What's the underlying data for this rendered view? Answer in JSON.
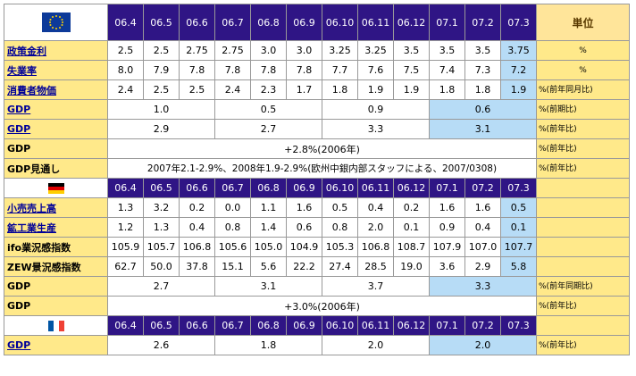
{
  "months": [
    "06.4",
    "06.5",
    "06.6",
    "06.7",
    "06.8",
    "06.9",
    "06.10",
    "06.11",
    "06.12",
    "07.1",
    "07.2",
    "07.3"
  ],
  "unit_header": "単位",
  "colors": {
    "header_bg": "#2f1585",
    "label_bg": "#ffe98a",
    "highlight": "#b7dcf6",
    "negative": "#c0143c"
  },
  "eu": {
    "flag": "eu-flag-icon",
    "rows": [
      {
        "label": "政策金利",
        "values": [
          "2.5",
          "2.5",
          "2.75",
          "2.75",
          "3.0",
          "3.0",
          "3.25",
          "3.25",
          "3.5",
          "3.5",
          "3.5",
          "3.75"
        ],
        "unit": "%"
      },
      {
        "label": "失業率",
        "values": [
          "8.0",
          "7.9",
          "7.8",
          "7.8",
          "7.8",
          "7.8",
          "7.7",
          "7.6",
          "7.5",
          "7.4",
          "7.3",
          "7.2"
        ],
        "unit": "%"
      },
      {
        "label": "消費者物価",
        "values": [
          "2.4",
          "2.5",
          "2.5",
          "2.4",
          "2.3",
          "1.7",
          "1.8",
          "1.9",
          "1.9",
          "1.8",
          "1.8",
          "1.9"
        ],
        "unit": "%(前年同月比)"
      }
    ],
    "gdp_quarterly": {
      "label": "GDP",
      "values": [
        "1.0",
        "0.5",
        "0.9",
        "0.6"
      ],
      "unit": "%(前期比)"
    },
    "gdp_yoy": {
      "label": "GDP",
      "values": [
        "2.9",
        "2.7",
        "3.3",
        "3.1"
      ],
      "unit": "%(前年比)"
    },
    "gdp_annual": {
      "label": "GDP",
      "value": "+2.8%(2006年)",
      "unit": "%(前年比)"
    },
    "gdp_outlook": {
      "label": "GDP見通し",
      "value": "2007年2.1-2.9%、2008年1.9-2.9%(欧州中銀内部スタッフによる、2007/0308)",
      "unit": "%(前年比)"
    }
  },
  "de": {
    "flag": "germany-flag-icon",
    "rows": [
      {
        "label": "小売売上高",
        "values": [
          "1.3",
          "3.2",
          "0.2",
          "0.0",
          "1.1",
          "1.6",
          "0.5",
          "0.4",
          "0.2",
          "1.6",
          "1.6",
          "0.5"
        ],
        "neg": [
          true,
          false,
          true,
          false,
          false,
          true,
          true,
          true,
          true,
          true,
          true,
          false
        ],
        "unit": ""
      },
      {
        "label": "鉱工業生産",
        "values": [
          "1.2",
          "1.3",
          "0.4",
          "0.8",
          "1.4",
          "0.6",
          "0.8",
          "2.0",
          "0.1",
          "0.9",
          "0.4",
          "0.1"
        ],
        "neg": [
          false,
          false,
          true,
          false,
          false,
          true,
          true,
          false,
          false,
          false,
          false,
          true
        ],
        "unit": ""
      },
      {
        "label": "ifo業況感指数",
        "values": [
          "105.9",
          "105.7",
          "106.8",
          "105.6",
          "105.0",
          "104.9",
          "105.3",
          "106.8",
          "108.7",
          "107.9",
          "107.0",
          "107.7"
        ],
        "neg": [
          false,
          false,
          false,
          false,
          false,
          false,
          false,
          false,
          false,
          false,
          false,
          false
        ],
        "unit": ""
      },
      {
        "label": "ZEW景況感指数",
        "values": [
          "62.7",
          "50.0",
          "37.8",
          "15.1",
          "5.6",
          "22.2",
          "27.4",
          "28.5",
          "19.0",
          "3.6",
          "2.9",
          "5.8"
        ],
        "neg": [
          false,
          false,
          false,
          false,
          true,
          true,
          true,
          true,
          true,
          true,
          false,
          false
        ],
        "unit": ""
      }
    ],
    "gdp_yoy": {
      "label": "GDP",
      "values": [
        "2.7",
        "3.1",
        "3.7",
        "3.3"
      ],
      "unit": "%(前年同期比)"
    },
    "gdp_annual": {
      "label": "GDP",
      "value": "+3.0%(2006年)",
      "unit": "%(前年比)"
    }
  },
  "fr": {
    "flag": "france-flag-icon",
    "gdp": {
      "label": "GDP",
      "values": [
        "2.6",
        "1.8",
        "2.0",
        "2.0"
      ],
      "unit": "%(前年比)"
    }
  }
}
